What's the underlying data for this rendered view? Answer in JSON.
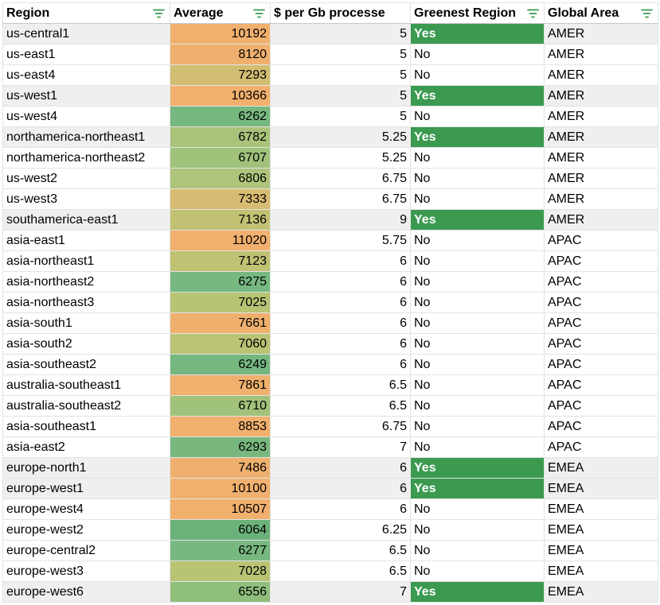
{
  "headers": {
    "region": "Region",
    "average": "Average",
    "cost": "$ per Gb processe",
    "greenest": "Greenest Region",
    "area": "Global Area"
  },
  "colors": {
    "yes_fill": "#3b9a4f",
    "zebra_fill": "#efefef",
    "filter_icon": "#3a9a4f",
    "scale_green": "#74b87a",
    "scale_yellow": "#c6c171",
    "scale_orange": "#f2b06e"
  },
  "icons": {
    "filter": "filter-icon"
  },
  "rows": [
    {
      "region": "us-central1",
      "average": "10192",
      "cost": "5",
      "greenest": "Yes",
      "area": "AMER",
      "avg_color": "#f1b06e"
    },
    {
      "region": "us-east1",
      "average": "8120",
      "cost": "5",
      "greenest": "No",
      "area": "AMER",
      "avg_color": "#efb06f"
    },
    {
      "region": "us-east4",
      "average": "7293",
      "cost": "5",
      "greenest": "No",
      "area": "AMER",
      "avg_color": "#d2be72"
    },
    {
      "region": "us-west1",
      "average": "10366",
      "cost": "5",
      "greenest": "Yes",
      "area": "AMER",
      "avg_color": "#f1b06e"
    },
    {
      "region": "us-west4",
      "average": "6262",
      "cost": "5",
      "greenest": "No",
      "area": "AMER",
      "avg_color": "#76b880"
    },
    {
      "region": "northamerica-northeast1",
      "average": "6782",
      "cost": "5.25",
      "greenest": "Yes",
      "area": "AMER",
      "avg_color": "#a9c37a"
    },
    {
      "region": "northamerica-northeast2",
      "average": "6707",
      "cost": "5.25",
      "greenest": "No",
      "area": "AMER",
      "avg_color": "#a0c27b"
    },
    {
      "region": "us-west2",
      "average": "6806",
      "cost": "6.75",
      "greenest": "No",
      "area": "AMER",
      "avg_color": "#aec47a"
    },
    {
      "region": "us-west3",
      "average": "7333",
      "cost": "6.75",
      "greenest": "No",
      "area": "AMER",
      "avg_color": "#d8bb72"
    },
    {
      "region": "southamerica-east1",
      "average": "7136",
      "cost": "9",
      "greenest": "Yes",
      "area": "AMER",
      "avg_color": "#c1c173"
    },
    {
      "region": "asia-east1",
      "average": "11020",
      "cost": "5.75",
      "greenest": "No",
      "area": "APAC",
      "avg_color": "#f1b06e"
    },
    {
      "region": "asia-northeast1",
      "average": "7123",
      "cost": "6",
      "greenest": "No",
      "area": "APAC",
      "avg_color": "#c0c273"
    },
    {
      "region": "asia-northeast2",
      "average": "6275",
      "cost": "6",
      "greenest": "No",
      "area": "APAC",
      "avg_color": "#76b880"
    },
    {
      "region": "asia-northeast3",
      "average": "7025",
      "cost": "6",
      "greenest": "No",
      "area": "APAC",
      "avg_color": "#b7c474"
    },
    {
      "region": "asia-south1",
      "average": "7661",
      "cost": "6",
      "greenest": "No",
      "area": "APAC",
      "avg_color": "#efb06e"
    },
    {
      "region": "asia-south2",
      "average": "7060",
      "cost": "6",
      "greenest": "No",
      "area": "APAC",
      "avg_color": "#bbc374"
    },
    {
      "region": "asia-southeast2",
      "average": "6249",
      "cost": "6",
      "greenest": "No",
      "area": "APAC",
      "avg_color": "#74b880"
    },
    {
      "region": "australia-southeast1",
      "average": "7861",
      "cost": "6.5",
      "greenest": "No",
      "area": "APAC",
      "avg_color": "#f0b06e"
    },
    {
      "region": "australia-southeast2",
      "average": "6710",
      "cost": "6.5",
      "greenest": "No",
      "area": "APAC",
      "avg_color": "#a1c27b"
    },
    {
      "region": "asia-southeast1",
      "average": "8853",
      "cost": "6.75",
      "greenest": "No",
      "area": "APAC",
      "avg_color": "#f1b06e"
    },
    {
      "region": "asia-east2",
      "average": "6293",
      "cost": "7",
      "greenest": "No",
      "area": "APAC",
      "avg_color": "#78b87f"
    },
    {
      "region": "europe-north1",
      "average": "7486",
      "cost": "6",
      "greenest": "Yes",
      "area": "EMEA",
      "avg_color": "#efb06f"
    },
    {
      "region": "europe-west1",
      "average": "10100",
      "cost": "6",
      "greenest": "Yes",
      "area": "EMEA",
      "avg_color": "#f1b06e"
    },
    {
      "region": "europe-west4",
      "average": "10507",
      "cost": "6",
      "greenest": "No",
      "area": "EMEA",
      "avg_color": "#f1b06e"
    },
    {
      "region": "europe-west2",
      "average": "6064",
      "cost": "6.25",
      "greenest": "No",
      "area": "EMEA",
      "avg_color": "#6bb27a"
    },
    {
      "region": "europe-central2",
      "average": "6277",
      "cost": "6.5",
      "greenest": "No",
      "area": "EMEA",
      "avg_color": "#77b880"
    },
    {
      "region": "europe-west3",
      "average": "7028",
      "cost": "6.5",
      "greenest": "No",
      "area": "EMEA",
      "avg_color": "#b8c474"
    },
    {
      "region": "europe-west6",
      "average": "6556",
      "cost": "7",
      "greenest": "Yes",
      "area": "EMEA",
      "avg_color": "#90bf7c"
    }
  ]
}
